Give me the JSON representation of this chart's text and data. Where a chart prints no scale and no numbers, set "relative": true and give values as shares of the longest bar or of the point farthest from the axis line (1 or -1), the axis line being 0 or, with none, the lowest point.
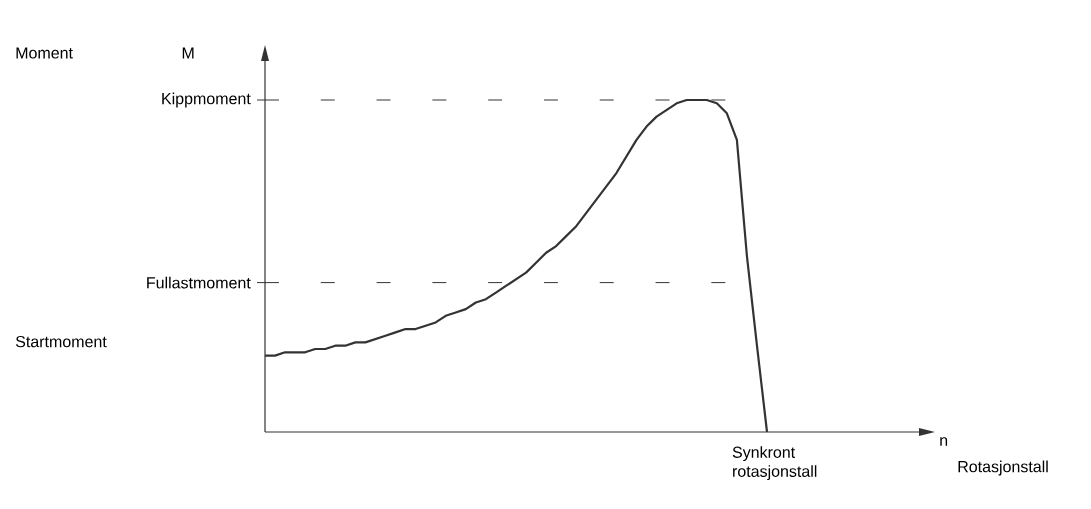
{
  "chart_data": {
    "type": "line",
    "relative": true,
    "ylabel": "M",
    "categories": [
      null,
      null,
      null,
      null,
      null,
      null,
      null,
      null,
      null,
      null,
      null,
      null,
      null,
      null,
      null,
      null,
      null,
      null,
      null,
      null,
      null,
      null,
      null,
      null,
      null,
      null,
      null,
      null,
      null,
      null,
      null,
      null,
      null,
      null,
      null,
      null,
      null,
      null,
      null,
      null,
      null,
      null,
      null,
      null,
      null,
      null,
      null,
      null,
      null,
      null,
      null
    ],
    "series": [
      {
        "color": "#333333",
        "values": [
          0.23,
          0.23,
          0.24,
          0.24,
          0.24,
          0.25,
          0.25,
          0.26,
          0.26,
          0.27,
          0.27,
          0.28,
          0.29,
          0.3,
          0.31,
          0.31,
          0.32,
          0.33,
          0.35,
          0.36,
          0.37,
          0.39,
          0.4,
          0.42,
          0.44,
          0.46,
          0.48,
          0.51,
          0.54,
          0.56,
          0.59,
          0.62,
          0.66,
          0.7,
          0.74,
          0.78,
          0.83,
          0.88,
          0.92,
          0.95,
          0.97,
          0.99,
          1.0,
          1.0,
          1.0,
          0.99,
          0.96,
          0.88,
          0.53,
          0.26,
          0
        ]
      }
    ],
    "ref_lines": [
      {
        "axis": "y",
        "value": 1.0,
        "label": "Kippmoment",
        "line_style": "dashed"
      },
      {
        "axis": "y",
        "value": 0.45,
        "label": "Fullastmoment",
        "line_style": "dashed"
      }
    ],
    "annotations": [
      "Moment",
      "Startmoment",
      "Synkront rotasjonstall",
      "Rotasjonstall",
      "n"
    ]
  }
}
